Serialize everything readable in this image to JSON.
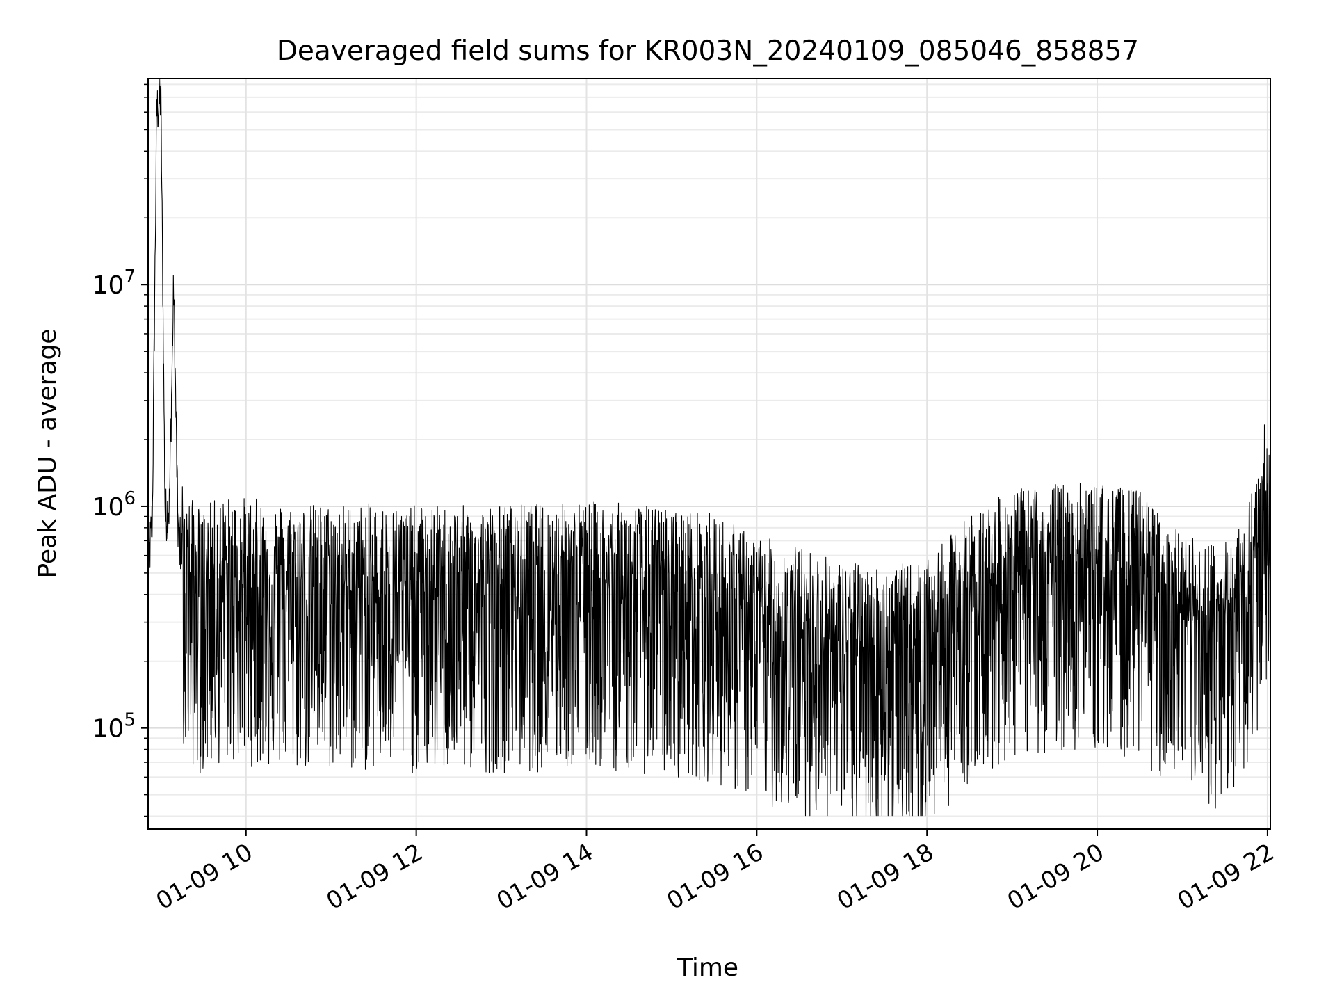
{
  "chart_data": {
    "type": "line",
    "title": "Deaveraged field sums for KR003N_20240109_085046_858857",
    "xlabel": "Time",
    "ylabel": "Peak ADU - average",
    "x_ticks": [
      "01-09 10",
      "01-09 12",
      "01-09 14",
      "01-09 16",
      "01-09 18",
      "01-09 20",
      "01-09 22"
    ],
    "xlim": [
      "2024-01-09 08:51",
      "2024-01-09 22:02"
    ],
    "y_scale": "log",
    "y_ticks": [
      {
        "value": 100000,
        "base": "10",
        "exp": "5"
      },
      {
        "value": 1000000,
        "base": "10",
        "exp": "6"
      },
      {
        "value": 10000000,
        "base": "10",
        "exp": "7"
      }
    ],
    "ylim": [
      35000,
      85000000
    ],
    "grid": true,
    "line_color": "#000000",
    "series": [
      {
        "x": [
          "2024-01-09 08:51",
          "2024-01-09 08:54",
          "2024-01-09 08:57",
          "2024-01-09 09:00",
          "2024-01-09 09:03",
          "2024-01-09 09:06",
          "2024-01-09 09:09",
          "2024-01-09 09:12",
          "2024-01-09 09:15",
          "2024-01-09 09:20",
          "2024-01-09 09:30",
          "2024-01-09 09:40",
          "2024-01-09 10:00",
          "2024-01-09 10:30",
          "2024-01-09 11:00",
          "2024-01-09 11:30",
          "2024-01-09 12:00",
          "2024-01-09 12:30",
          "2024-01-09 13:00",
          "2024-01-09 13:30",
          "2024-01-09 14:00",
          "2024-01-09 14:30",
          "2024-01-09 15:00",
          "2024-01-09 15:30",
          "2024-01-09 16:00",
          "2024-01-09 16:30",
          "2024-01-09 17:00",
          "2024-01-09 17:30",
          "2024-01-09 18:00",
          "2024-01-09 18:30",
          "2024-01-09 19:00",
          "2024-01-09 19:30",
          "2024-01-09 20:00",
          "2024-01-09 20:30",
          "2024-01-09 21:00",
          "2024-01-09 21:30",
          "2024-01-09 21:50",
          "2024-01-09 22:02"
        ],
        "y": [
          500000,
          900000,
          60000000,
          70000000,
          900000,
          1000000,
          9800000,
          800000,
          600000,
          450000,
          400000,
          450000,
          450000,
          420000,
          420000,
          420000,
          410000,
          410000,
          420000,
          420000,
          430000,
          420000,
          400000,
          380000,
          300000,
          270000,
          230000,
          220000,
          230000,
          380000,
          480000,
          520000,
          520000,
          480000,
          300000,
          280000,
          500000,
          1400000
        ]
      }
    ]
  }
}
